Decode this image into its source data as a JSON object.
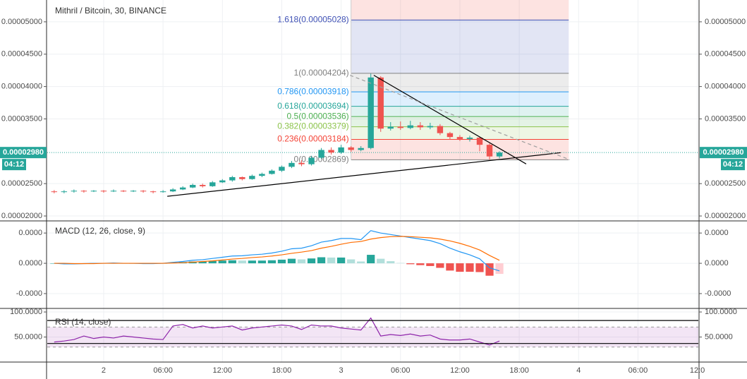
{
  "chart_data": [
    {
      "type": "candlestick",
      "title": "Mithril / Bitcoin, 30, BINANCE",
      "x": [
        -5,
        -4,
        -3,
        -2,
        -1,
        0,
        1,
        2,
        3,
        4,
        5,
        6,
        7,
        8,
        9,
        10,
        11,
        12,
        13,
        14,
        15,
        16,
        17,
        18,
        19,
        20,
        21,
        22,
        23,
        24,
        25,
        26,
        27,
        28,
        29,
        30,
        31,
        32,
        33,
        34,
        35,
        36,
        37,
        38,
        39,
        40
      ],
      "open": [
        2.38e-05,
        2.37e-05,
        2.38e-05,
        2.39e-05,
        2.38e-05,
        2.39e-05,
        2.38e-05,
        2.39e-05,
        2.38e-05,
        2.39e-05,
        2.38e-05,
        2.37e-05,
        2.38e-05,
        2.41e-05,
        2.44e-05,
        2.48e-05,
        2.46e-05,
        2.52e-05,
        2.55e-05,
        2.6e-05,
        2.57e-05,
        2.62e-05,
        2.65e-05,
        2.7e-05,
        2.76e-05,
        2.82e-05,
        2.8e-05,
        2.9e-05,
        3.02e-05,
        2.98e-05,
        3.06e-05,
        3.02e-05,
        3.05e-05,
        4.14e-05,
        3.35e-05,
        3.38e-05,
        3.36e-05,
        3.4e-05,
        3.37e-05,
        3.39e-05,
        3.28e-05,
        3.22e-05,
        3.19e-05,
        3.21e-05,
        3.1e-05,
        2.92e-05
      ],
      "high": [
        2.4e-05,
        2.4e-05,
        2.41e-05,
        2.4e-05,
        2.4e-05,
        2.4e-05,
        2.41e-05,
        2.4e-05,
        2.4e-05,
        2.4e-05,
        2.39e-05,
        2.4e-05,
        2.43e-05,
        2.46e-05,
        2.5e-05,
        2.5e-05,
        2.54e-05,
        2.57e-05,
        2.62e-05,
        2.61e-05,
        2.64e-05,
        2.67e-05,
        2.72e-05,
        2.78e-05,
        2.85e-05,
        2.86e-05,
        2.93e-05,
        3.05e-05,
        3.06e-05,
        3.1e-05,
        3.08e-05,
        3.08e-05,
        4.2e-05,
        4.16e-05,
        3.45e-05,
        3.46e-05,
        3.47e-05,
        3.45e-05,
        3.44e-05,
        3.42e-05,
        3.3e-05,
        3.25e-05,
        3.24e-05,
        3.22e-05,
        3.12e-05,
        3e-05
      ],
      "low": [
        2.35e-05,
        2.35e-05,
        2.36e-05,
        2.36e-05,
        2.37e-05,
        2.36e-05,
        2.37e-05,
        2.37e-05,
        2.37e-05,
        2.36e-05,
        2.35e-05,
        2.36e-05,
        2.37e-05,
        2.4e-05,
        2.43e-05,
        2.44e-05,
        2.45e-05,
        2.51e-05,
        2.53e-05,
        2.55e-05,
        2.56e-05,
        2.6e-05,
        2.64e-05,
        2.68e-05,
        2.74e-05,
        2.77e-05,
        2.78e-05,
        2.88e-05,
        2.95e-05,
        2.96e-05,
        2.99e-05,
        3e-05,
        3.03e-05,
        3.3e-05,
        3.32e-05,
        3.33e-05,
        3.34e-05,
        3.33e-05,
        3.34e-05,
        3.25e-05,
        3.18e-05,
        3.16e-05,
        3.15e-05,
        3e-05,
        2.87e-05,
        2.89e-05
      ],
      "close": [
        2.37e-05,
        2.38e-05,
        2.39e-05,
        2.38e-05,
        2.39e-05,
        2.38e-05,
        2.39e-05,
        2.38e-05,
        2.39e-05,
        2.38e-05,
        2.37e-05,
        2.38e-05,
        2.41e-05,
        2.44e-05,
        2.48e-05,
        2.46e-05,
        2.52e-05,
        2.55e-05,
        2.6e-05,
        2.57e-05,
        2.62e-05,
        2.65e-05,
        2.7e-05,
        2.76e-05,
        2.82e-05,
        2.8e-05,
        2.9e-05,
        3.02e-05,
        2.98e-05,
        3.06e-05,
        3.02e-05,
        3.05e-05,
        4.14e-05,
        3.35e-05,
        3.38e-05,
        3.36e-05,
        3.4e-05,
        3.37e-05,
        3.39e-05,
        3.28e-05,
        3.22e-05,
        3.19e-05,
        3.21e-05,
        3.1e-05,
        2.92e-05,
        2.98e-05
      ],
      "up_color": "#26a69a",
      "down_color": "#ef5350",
      "xlim": [
        -5.7,
        60.1
      ],
      "xticks": [
        {
          "value": 0,
          "label": "2"
        },
        {
          "value": 6,
          "label": "06:00"
        },
        {
          "value": 12,
          "label": "12:00"
        },
        {
          "value": 18,
          "label": "18:00"
        },
        {
          "value": 24,
          "label": "3"
        },
        {
          "value": 30,
          "label": "06:00"
        },
        {
          "value": 36,
          "label": "12:00"
        },
        {
          "value": 42,
          "label": "18:00"
        },
        {
          "value": 48,
          "label": "4"
        },
        {
          "value": 54,
          "label": "06:00"
        },
        {
          "value": 60,
          "label": "12:0"
        }
      ],
      "ylim": [
        1.924e-05,
        5.337e-05
      ],
      "yticks": [
        {
          "value": 2e-05,
          "label": "0.00002000"
        },
        {
          "value": 2.5e-05,
          "label": "0.00002500"
        },
        {
          "value": 3.5e-05,
          "label": "0.00003500"
        },
        {
          "value": 4e-05,
          "label": "0.00004000"
        },
        {
          "value": 4.5e-05,
          "label": "0.00004500"
        },
        {
          "value": 5e-05,
          "label": "0.00005000"
        }
      ],
      "grid": true,
      "last_price": {
        "value": 2.98e-05,
        "label": "0.00002980"
      },
      "last_color": "#26a69a",
      "countdown": "04:12",
      "fib_xlim": [
        25,
        47
      ],
      "fib_fill_above": "#f44336",
      "fib_levels": [
        {
          "value": 5.028e-05,
          "label": "1.618(0.00005028)",
          "color": "#3f51b5"
        },
        {
          "value": 4.204e-05,
          "label": "1(0.00004204)",
          "color": "#808080"
        },
        {
          "value": 3.918e-05,
          "label": "0.786(0.00003918)",
          "color": "#2196f3"
        },
        {
          "value": 3.694e-05,
          "label": "0.618(0.00003694)",
          "color": "#26a69a"
        },
        {
          "value": 3.536e-05,
          "label": "0.5(0.00003536)",
          "color": "#4caf50"
        },
        {
          "value": 3.379e-05,
          "label": "0.382(0.00003379)",
          "color": "#8bc34a"
        },
        {
          "value": 3.184e-05,
          "label": "0.236(0.00003184)",
          "color": "#f44336"
        },
        {
          "value": 2.869e-05,
          "label": "0(0.00002869)",
          "color": "#808080"
        }
      ],
      "trendlines": [
        {
          "x": [
            6.43,
            46.2
          ],
          "y": [
            2.304e-05,
            2.978e-05
          ],
          "color": "#000000",
          "dashed": false
        },
        {
          "x": [
            27.3,
            42.7
          ],
          "y": [
            4.174e-05,
            2.804e-05
          ],
          "color": "#000000",
          "dashed": false
        },
        {
          "x": [
            24.9,
            47.1
          ],
          "y": [
            4.174e-05,
            2.87e-05
          ],
          "color": "#9e9e9e",
          "dashed": true
        }
      ]
    },
    {
      "type": "macd",
      "title": "MACD (12, 26, close, 9)",
      "ylim": [
        -1.49e-06,
        1.4e-06
      ],
      "yticks": [
        {
          "value": 1e-06,
          "label": "0.0000"
        },
        {
          "value": 0,
          "label": "0.0000"
        },
        {
          "value": -1e-06,
          "label": "-0.0000"
        }
      ],
      "grid": true,
      "histogram": [
        0,
        -2e-08,
        -1e-08,
        0,
        1e-08,
        0,
        1e-08,
        0,
        0,
        -1e-08,
        -1e-08,
        0,
        2e-08,
        4e-08,
        6e-08,
        6e-08,
        8e-08,
        9e-08,
        1e-07,
        9e-08,
        9e-08,
        9e-08,
        1e-07,
        1.2e-07,
        1.5e-07,
        1.3e-07,
        1.6e-07,
        2e-07,
        1.9e-07,
        1.9e-07,
        1.3e-07,
        6e-08,
        2.8e-07,
        1.5e-07,
        7e-08,
        1e-08,
        -3e-08,
        -6e-08,
        -9e-08,
        -1.5e-07,
        -2.4e-07,
        -2.8e-07,
        -2.8e-07,
        -2.9e-07,
        -4.1e-07,
        -3.5e-07
      ],
      "hist_colors": [
        "#26a69a",
        "#b2dfdb",
        "#ef5350",
        "#ffcdd2"
      ],
      "series": [
        {
          "name": "MACD",
          "color": "#2196f3",
          "values": [
            0,
            -2e-08,
            -2e-08,
            -1e-08,
            0,
            0,
            1e-08,
            0,
            0,
            -1e-08,
            -1e-08,
            0,
            3e-08,
            6e-08,
            1e-07,
            1.2e-07,
            1.6e-07,
            2e-07,
            2.4e-07,
            2.5e-07,
            2.8e-07,
            3e-07,
            3.4e-07,
            4e-07,
            4.8e-07,
            5e-07,
            5.8e-07,
            7e-07,
            7.5e-07,
            8.2e-07,
            8.2e-07,
            7.8e-07,
            1.08e-06,
            1e-06,
            9.5e-07,
            9e-07,
            8.5e-07,
            8e-07,
            7.5e-07,
            6.5e-07,
            5e-07,
            3.8e-07,
            2.8e-07,
            1.5e-07,
            -1.5e-07,
            -2.5e-07
          ]
        },
        {
          "name": "Signal",
          "color": "#ff6d00",
          "values": [
            0,
            0,
            -1e-08,
            -1e-08,
            -1e-08,
            0,
            0,
            0,
            0,
            0,
            0,
            0,
            1e-08,
            2e-08,
            4e-08,
            6e-08,
            8e-08,
            1.1e-07,
            1.4e-07,
            1.6e-07,
            1.9e-07,
            2.1e-07,
            2.4e-07,
            2.8e-07,
            3.3e-07,
            3.7e-07,
            4.2e-07,
            5e-07,
            5.6e-07,
            6.3e-07,
            6.9e-07,
            7.2e-07,
            8e-07,
            8.5e-07,
            8.8e-07,
            8.9e-07,
            8.8e-07,
            8.6e-07,
            8.4e-07,
            8e-07,
            7.4e-07,
            6.6e-07,
            5.6e-07,
            4.4e-07,
            2.6e-07,
            1e-07
          ]
        }
      ]
    },
    {
      "type": "rsi",
      "title": "RSI (14, close)",
      "ylim": [
        0,
        107.1
      ],
      "yticks": [
        {
          "value": 100,
          "label": "100.0000"
        },
        {
          "value": 50,
          "label": "50.0000"
        }
      ],
      "grid": true,
      "band": [
        30,
        70
      ],
      "band_color": "#9c27b0",
      "series": [
        {
          "name": "RSI",
          "color": "#8e24aa",
          "values": [
            40,
            42,
            45,
            52,
            47,
            50,
            48,
            52,
            50,
            48,
            46,
            45,
            72,
            75,
            68,
            72,
            68,
            70,
            72,
            64,
            68,
            70,
            72,
            74,
            72,
            65,
            74,
            72,
            72,
            68,
            66,
            64,
            88,
            52,
            55,
            53,
            56,
            52,
            54,
            46,
            44,
            44,
            46,
            40,
            34,
            42
          ]
        }
      ],
      "trendlines": [
        {
          "x": [
            -5.7,
            60.1
          ],
          "y": [
            83,
            83
          ],
          "color": "#000000",
          "dashed": false
        },
        {
          "x": [
            -5.7,
            60.1
          ],
          "y": [
            37.1,
            37.1
          ],
          "color": "#000000",
          "dashed": false
        }
      ]
    }
  ]
}
